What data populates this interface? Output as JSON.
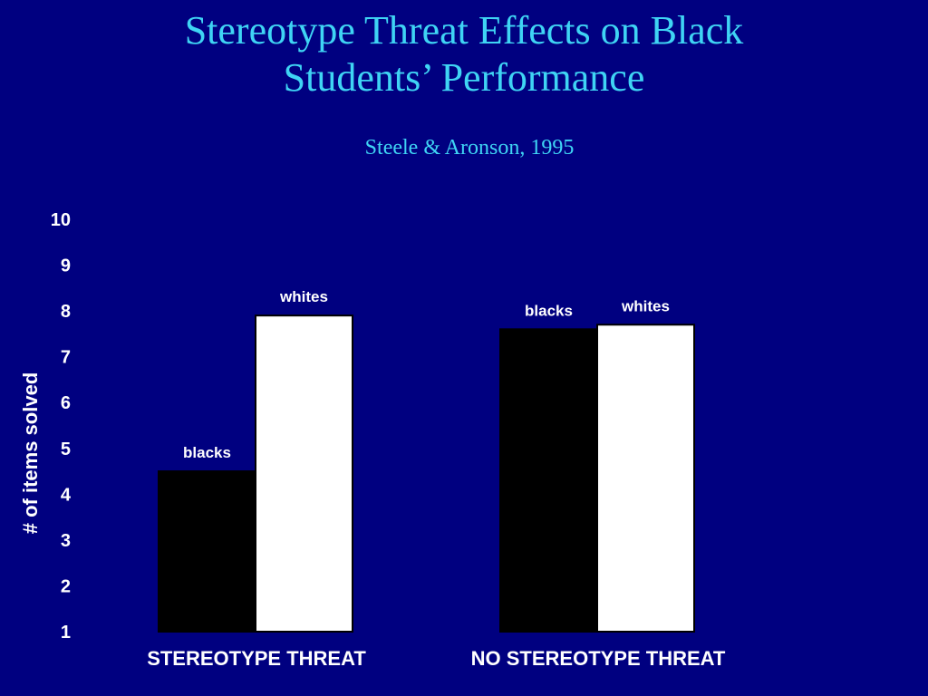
{
  "slide": {
    "title_line1": "Stereotype Threat Effects on Black",
    "title_line2": "Students’ Performance",
    "subtitle": "Steele & Aronson, 1995"
  },
  "chart_data": {
    "type": "bar",
    "title": "Stereotype Threat Effects on Black Students’ Performance",
    "subtitle": "Steele & Aronson, 1995",
    "xlabel": "",
    "ylabel": "# of items solved",
    "ylim": [
      1,
      10
    ],
    "yticks": [
      "1",
      "2",
      "3",
      "4",
      "5",
      "6",
      "7",
      "8",
      "9",
      "10"
    ],
    "grid": false,
    "categories": [
      "STEREOTYPE THREAT",
      "NO STEREOTYPE THREAT"
    ],
    "series": [
      {
        "name": "blacks",
        "color": "#000000",
        "values": [
          4.5,
          7.6
        ]
      },
      {
        "name": "whites",
        "color": "#ffffff",
        "values": [
          7.9,
          7.7
        ]
      }
    ],
    "colors": {
      "background": "#000080",
      "title": "#3fd4f4",
      "text": "#ffffff"
    }
  }
}
